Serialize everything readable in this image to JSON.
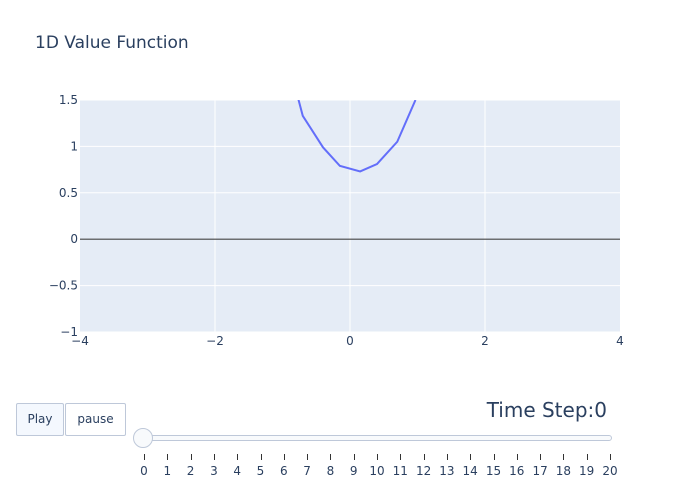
{
  "chart_data": {
    "type": "line",
    "title": "1D Value Function",
    "xlabel": "",
    "ylabel": "",
    "xlim": [
      -4,
      4
    ],
    "ylim": [
      -1,
      1.5
    ],
    "x_ticks": [
      -4,
      -2,
      0,
      2,
      4
    ],
    "x_tick_labels": [
      "−4",
      "−2",
      "0",
      "2",
      "4"
    ],
    "y_ticks": [
      -1,
      -0.5,
      0,
      0.5,
      1,
      1.5
    ],
    "y_tick_labels": [
      "−1",
      "−0.5",
      "0",
      "0.5",
      "1",
      "1.5"
    ],
    "grid": true,
    "series": [
      {
        "color": "#636efa",
        "x": [
          -0.78,
          -0.7,
          -0.4,
          -0.15,
          0.15,
          0.4,
          0.7,
          0.97
        ],
        "y": [
          1.55,
          1.33,
          0.99,
          0.79,
          0.73,
          0.81,
          1.05,
          1.5
        ]
      }
    ]
  },
  "controls": {
    "play_label": "Play",
    "pause_label": "pause",
    "slider_prefix": "Time Step:",
    "slider_value": "0",
    "steps": [
      "0",
      "1",
      "2",
      "3",
      "4",
      "5",
      "6",
      "7",
      "8",
      "9",
      "10",
      "11",
      "12",
      "13",
      "14",
      "15",
      "16",
      "17",
      "18",
      "19",
      "20"
    ]
  },
  "colors": {
    "plot_bg": "#e5ecf6",
    "grid": "#ffffff",
    "zeroline": "#444444",
    "text": "#2a3f5f",
    "line": "#636efa"
  }
}
